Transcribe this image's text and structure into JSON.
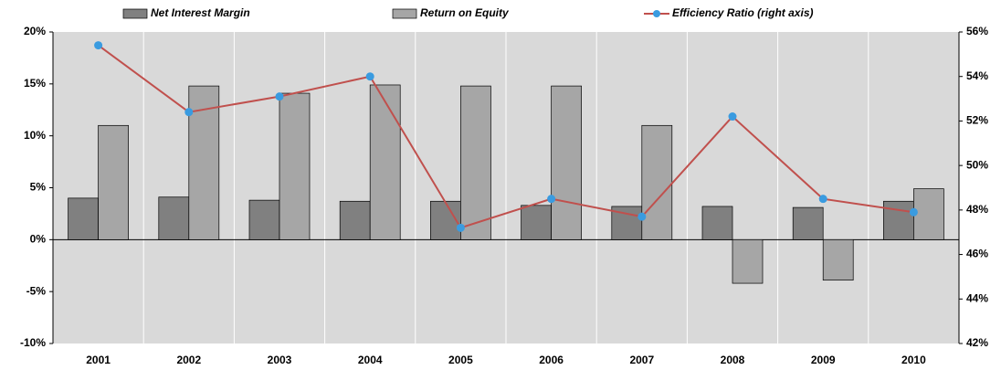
{
  "chart_data": {
    "type": "bar-line",
    "categories": [
      "2001",
      "2002",
      "2003",
      "2004",
      "2005",
      "2006",
      "2007",
      "2008",
      "2009",
      "2010"
    ],
    "series": [
      {
        "name": "Net Interest Margin",
        "type": "bar",
        "color": "#808080",
        "values": [
          4.0,
          4.1,
          3.8,
          3.7,
          3.7,
          3.3,
          3.2,
          3.2,
          3.1,
          3.7
        ]
      },
      {
        "name": "Return on Equity",
        "type": "bar",
        "color": "#a6a6a6",
        "values": [
          11.0,
          14.8,
          14.1,
          14.9,
          14.8,
          14.8,
          11.0,
          -4.2,
          -3.9,
          4.9
        ]
      },
      {
        "name": "Efficiency Ratio (right axis)",
        "type": "line",
        "axis": "y2",
        "color": "#c0504d",
        "marker_color": "#3a9be0",
        "values": [
          55.4,
          52.4,
          53.1,
          54.0,
          47.2,
          48.5,
          47.7,
          52.2,
          48.5,
          47.9
        ]
      }
    ],
    "ylim": [
      -10,
      20
    ],
    "yticks": [
      {
        "value": -10,
        "label": "-10%"
      },
      {
        "value": -5,
        "label": "-5%"
      },
      {
        "value": 0,
        "label": "0%"
      },
      {
        "value": 5,
        "label": "5%"
      },
      {
        "value": 10,
        "label": "10%"
      },
      {
        "value": 15,
        "label": "15%"
      },
      {
        "value": 20,
        "label": "20%"
      }
    ],
    "y2lim": [
      42,
      56
    ],
    "y2ticks": [
      {
        "value": 42,
        "label": "42%"
      },
      {
        "value": 44,
        "label": "44%"
      },
      {
        "value": 46,
        "label": "46%"
      },
      {
        "value": 48,
        "label": "48%"
      },
      {
        "value": 50,
        "label": "50%"
      },
      {
        "value": 52,
        "label": "52%"
      },
      {
        "value": 54,
        "label": "54%"
      },
      {
        "value": 56,
        "label": "56%"
      }
    ],
    "legend": "top",
    "background": "#d9d9d9"
  }
}
